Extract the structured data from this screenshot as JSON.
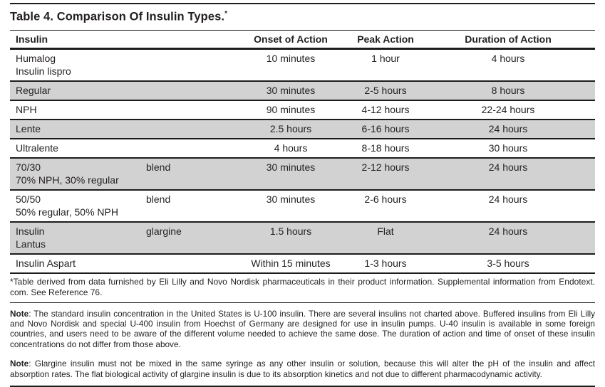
{
  "page": {
    "bg": "#ffffff",
    "text_color": "#231f20",
    "shaded_row_color": "#d2d2d2",
    "rule_color": "#1c1c1c"
  },
  "table": {
    "title": "Table 4. Comparison Of Insulin Types.",
    "title_marker": "*",
    "columns": {
      "insulin": "Insulin",
      "variant": "",
      "onset": "Onset of Action",
      "peak": "Peak Action",
      "duration": "Duration of Action"
    },
    "rows": [
      {
        "name": "Humalog",
        "name2": "Insulin lispro",
        "variant": "",
        "onset": "10 minutes",
        "peak": "1 hour",
        "duration": "4 hours"
      },
      {
        "name": "Regular",
        "name2": "",
        "variant": "",
        "onset": "30 minutes",
        "peak": "2-5 hours",
        "duration": "8 hours"
      },
      {
        "name": "NPH",
        "name2": "",
        "variant": "",
        "onset": "90 minutes",
        "peak": "4-12 hours",
        "duration": "22-24 hours"
      },
      {
        "name": "Lente",
        "name2": "",
        "variant": "",
        "onset": "2.5 hours",
        "peak": "6-16 hours",
        "duration": "24 hours"
      },
      {
        "name": "Ultralente",
        "name2": "",
        "variant": "",
        "onset": "4 hours",
        "peak": "8-18 hours",
        "duration": "30 hours"
      },
      {
        "name": "70/30",
        "name2": "70% NPH, 30% regular",
        "variant": "blend",
        "onset": "30 minutes",
        "peak": "2-12 hours",
        "duration": "24 hours"
      },
      {
        "name": "50/50",
        "name2": "50% regular, 50% NPH",
        "variant": "blend",
        "onset": "30 minutes",
        "peak": "2-6 hours",
        "duration": "24 hours"
      },
      {
        "name": "Insulin",
        "name2": "Lantus",
        "variant": "glargine",
        "onset": "1.5 hours",
        "peak": "Flat",
        "duration": "24 hours"
      },
      {
        "name": "Insulin Aspart",
        "name2": "",
        "variant": "",
        "onset": "Within 15 minutes",
        "peak": "1-3 hours",
        "duration": "3-5 hours"
      }
    ],
    "footnote": "*Table derived from data furnished by Eli Lilly and Novo Nordisk pharmaceuticals in their product information. Supplemental information from Endotext. com. See Reference 76."
  },
  "notes": [
    {
      "label": "Note",
      "text": ": The standard insulin concentration in the United States is U-100 insulin. There are several insulins not charted above. Buffered insulins from Eli Lilly and Novo Nordisk and special U-400 insulin from Hoechst of Germany are designed for use in insulin pumps. U-40 insulin is available in some foreign countries, and users need to be aware of the different volume needed to achieve the same dose. The duration of action and time of onset of these insulin concentrations do not differ from those above."
    },
    {
      "label": "Note",
      "text": ": Glargine insulin must not be mixed in the same syringe as any other insulin or solution, because this will alter the pH of the insulin and affect absorption rates. The flat biological activity of glargine insulin is due to its absorption kinetics and not due to different pharmacodynamic activity."
    }
  ]
}
